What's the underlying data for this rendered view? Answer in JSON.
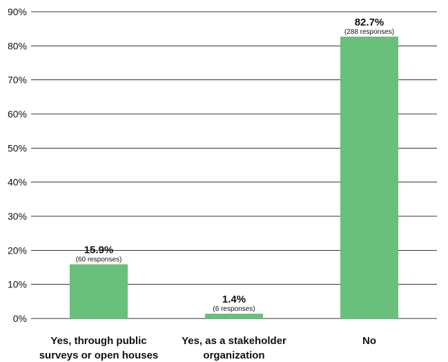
{
  "chart_data": {
    "type": "bar",
    "categories": [
      [
        "Yes, through public",
        "surveys or open houses"
      ],
      [
        "Yes, as a stakeholder",
        "organization"
      ],
      [
        "No"
      ]
    ],
    "values": [
      15.9,
      1.4,
      82.7
    ],
    "value_labels": [
      "15.9%",
      "1.4%",
      "82.7%"
    ],
    "response_labels": [
      "(60 responses)",
      "(6 responses)",
      "(288 responses)"
    ],
    "ylim": [
      0,
      90
    ],
    "y_ticks": [
      0,
      10,
      20,
      30,
      40,
      50,
      60,
      70,
      80,
      90
    ],
    "y_tick_labels": [
      "0%",
      "10%",
      "20%",
      "30%",
      "40%",
      "50%",
      "60%",
      "70%",
      "80%",
      "90%"
    ],
    "grid": true,
    "bar_color": "#68c07a",
    "grid_color": "#333333"
  }
}
